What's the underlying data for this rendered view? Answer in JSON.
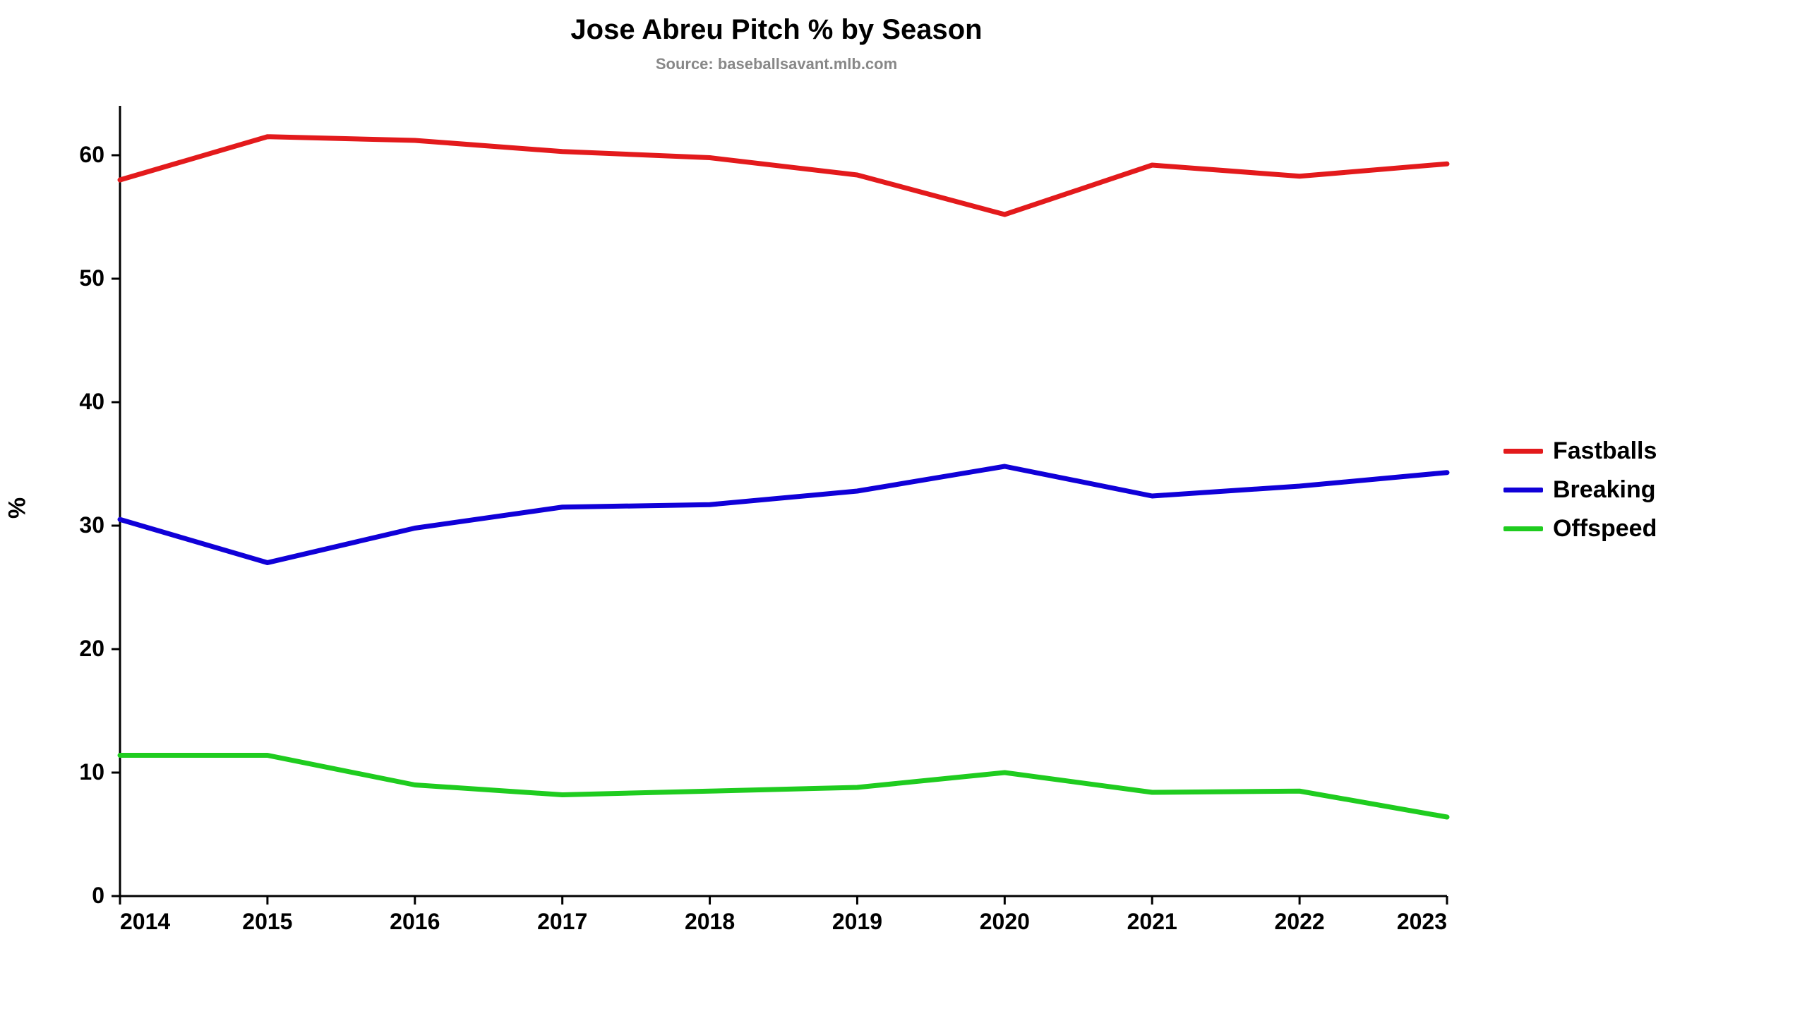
{
  "chart": {
    "type": "line",
    "title": "Jose Abreu Pitch % by Season",
    "title_fontsize": 40,
    "subtitle": "Source: baseballsavant.mlb.com",
    "subtitle_fontsize": 22,
    "subtitle_color": "#888888",
    "y_axis_label": "%",
    "axis_label_fontsize": 34,
    "background_color": "#ffffff",
    "axis_color": "#000000",
    "axis_stroke_width": 3,
    "tick_fontsize": 32,
    "x": {
      "min": 2014,
      "max": 2023,
      "ticks": [
        2014,
        2015,
        2016,
        2017,
        2018,
        2019,
        2020,
        2021,
        2022,
        2023
      ]
    },
    "y": {
      "min": 0,
      "max": 64,
      "ticks": [
        0,
        10,
        20,
        30,
        40,
        50,
        60
      ]
    },
    "line_width": 7,
    "legend_fontsize": 34,
    "series": [
      {
        "name": "Fastballs",
        "color": "#e31a1c",
        "values": [
          58.0,
          61.5,
          61.2,
          60.3,
          59.8,
          58.4,
          55.2,
          59.2,
          58.3,
          59.3
        ]
      },
      {
        "name": "Breaking",
        "color": "#1000d8",
        "values": [
          30.5,
          27.0,
          29.8,
          31.5,
          31.7,
          32.8,
          34.8,
          32.4,
          33.2,
          34.3
        ]
      },
      {
        "name": "Offspeed",
        "color": "#1fcc1f",
        "values": [
          11.4,
          11.4,
          9.0,
          8.2,
          8.5,
          8.8,
          10.0,
          8.4,
          8.5,
          6.4
        ]
      }
    ]
  }
}
